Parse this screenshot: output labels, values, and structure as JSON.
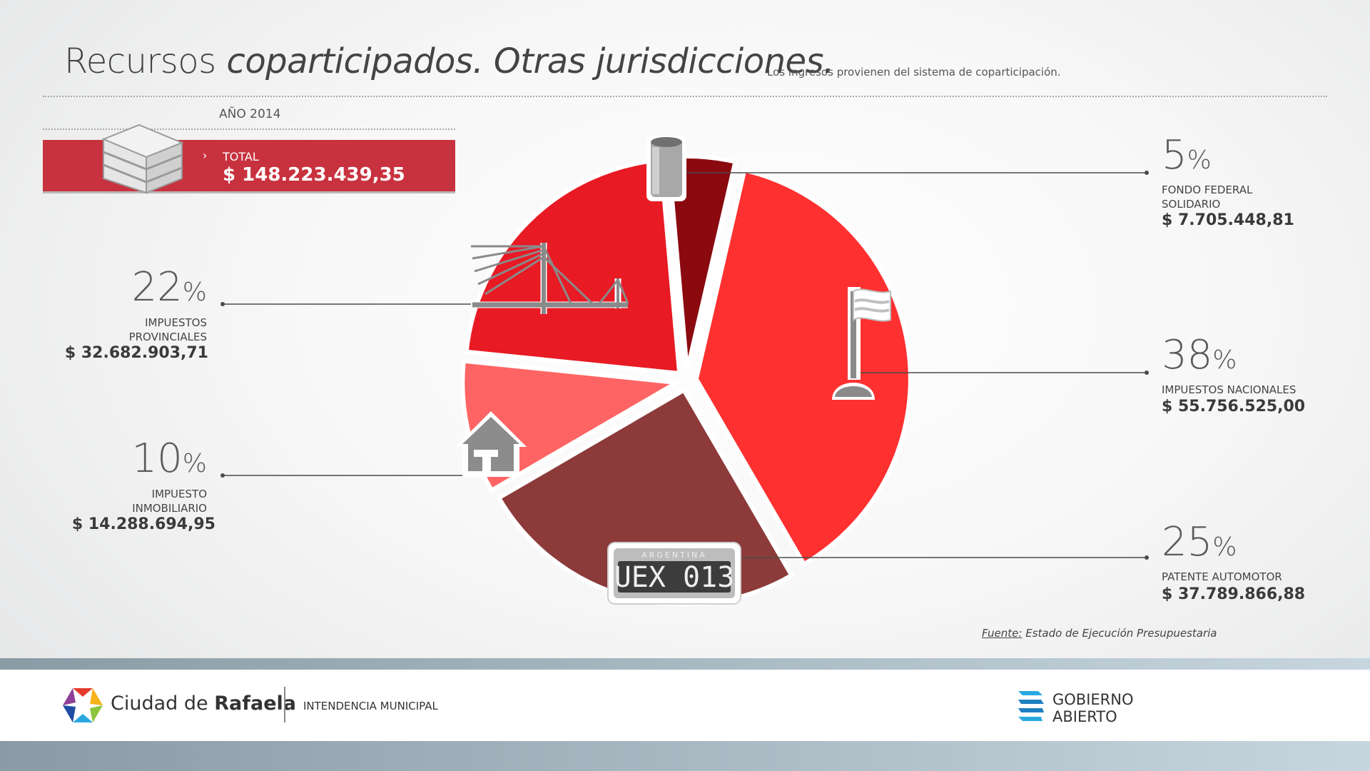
{
  "header": {
    "title_plain": "Recursos ",
    "title_italic": "coparticipados. Otras jurisdicciones.",
    "subtitle": "Los ingresos provienen del sistema de coparticipación."
  },
  "summary": {
    "year": "AÑO 2014",
    "total_label": "TOTAL",
    "total_value": "$ 148.223.439,35",
    "arrow": "›"
  },
  "items": {
    "fondo": {
      "pct": "5",
      "label_lines": [
        "FONDO FEDERAL",
        "SOLIDARIO"
      ],
      "amount": "$ 7.705.448,81"
    },
    "provinciales": {
      "pct": "22",
      "label_lines": [
        "IMPUESTOS",
        "PROVINCIALES"
      ],
      "amount": "$ 32.682.903,71"
    },
    "inmobiliario": {
      "pct": "10",
      "label_lines": [
        "IMPUESTO",
        "INMOBILIARIO"
      ],
      "amount": "$ 14.288.694,95"
    },
    "nacionales": {
      "pct": "38",
      "label_lines": [
        "IMPUESTOS NACIONALES"
      ],
      "amount": "$ 55.756.525,00"
    },
    "patente": {
      "pct": "25",
      "label_lines": [
        "PATENTE AUTOMOTOR"
      ],
      "amount": "$ 37.789.866,88"
    }
  },
  "percent_sign": "%",
  "plate": {
    "country": "ARGENTINA",
    "number": "UEX 013"
  },
  "source": {
    "label": "Fuente:",
    "text": " Estado de Ejecución Presupuestaria"
  },
  "footer": {
    "city_prefix": "Ciudad de ",
    "city_bold": "Rafaela",
    "intendencia": "INTENDENCIA MUNICIPAL",
    "gob_line1": "GOBIERNO",
    "gob_line2": "ABIERTO"
  },
  "chart_data": {
    "type": "pie",
    "title": "",
    "slices": [
      {
        "label": "FONDO FEDERAL SOLIDARIO",
        "percent": 5,
        "value": 7705448.81,
        "color": "#8a0a10"
      },
      {
        "label": "IMPUESTOS NACIONALES",
        "percent": 38,
        "value": 55756525.0,
        "color": "#ff3030"
      },
      {
        "label": "PATENTE AUTOMOTOR",
        "percent": 25,
        "value": 37789866.88,
        "color": "#8c3a3a"
      },
      {
        "label": "IMPUESTO INMOBILIARIO",
        "percent": 10,
        "value": 14288694.95,
        "color": "#ff6464"
      },
      {
        "label": "IMPUESTOS PROVINCIALES",
        "percent": 22,
        "value": 32682903.71,
        "color": "#e81a24"
      }
    ],
    "start_angle_deg": -5,
    "explode": true
  },
  "colors": {
    "accent": "#c8323e",
    "text_dark": "#3a3a3a"
  },
  "icons": [
    "building-icon",
    "bridge-icon",
    "house-icon",
    "flag-icon",
    "can-icon",
    "license-plate-icon",
    "city-logo-icon",
    "gobierno-abierto-icon"
  ]
}
